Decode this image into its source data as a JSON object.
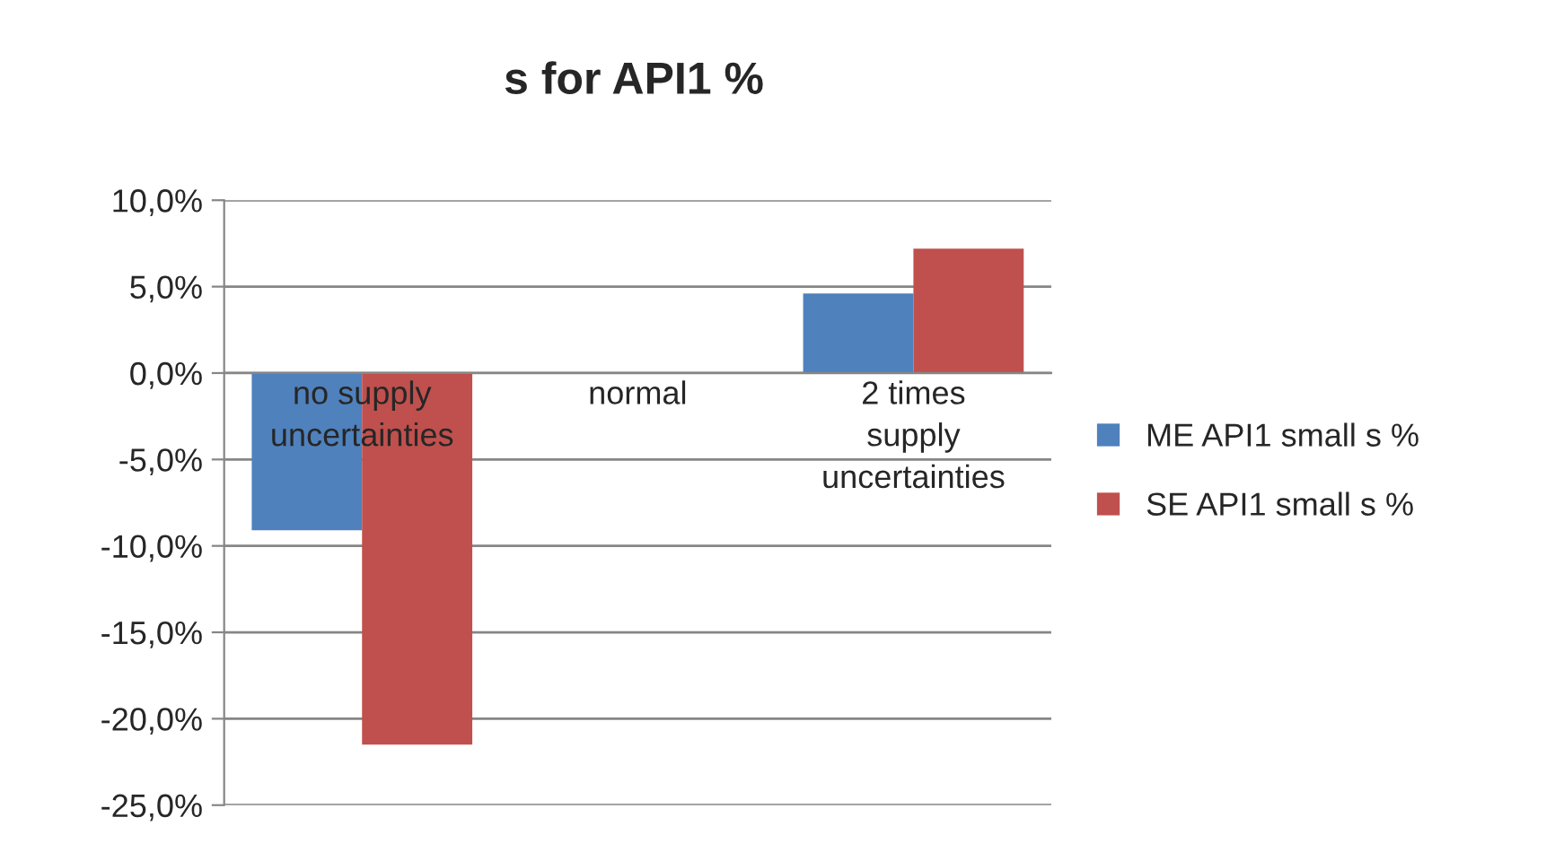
{
  "chart_data": {
    "type": "bar",
    "title": "s for API1 %",
    "categories": [
      "no supply\nuncertainties",
      "normal",
      "2 times\nsupply\nuncertainties"
    ],
    "series": [
      {
        "name": "ME API1 small s %",
        "color": "#4f81bd",
        "values": [
          -9.1,
          null,
          4.6
        ]
      },
      {
        "name": "SE API1 small s %",
        "color": "#c0504d",
        "values": [
          -21.5,
          null,
          7.2
        ]
      }
    ],
    "ylim": [
      -25,
      10
    ],
    "yticks": [
      {
        "value": 10,
        "label": "10,0%"
      },
      {
        "value": 5,
        "label": "5,0%"
      },
      {
        "value": 0,
        "label": "0,0%"
      },
      {
        "value": -5,
        "label": "-5,0%"
      },
      {
        "value": -10,
        "label": "-10,0%"
      },
      {
        "value": -15,
        "label": "-15,0%"
      },
      {
        "value": -20,
        "label": "-20,0%"
      },
      {
        "value": -25,
        "label": "-25,0%"
      }
    ],
    "grid": "y",
    "legend": "right"
  }
}
